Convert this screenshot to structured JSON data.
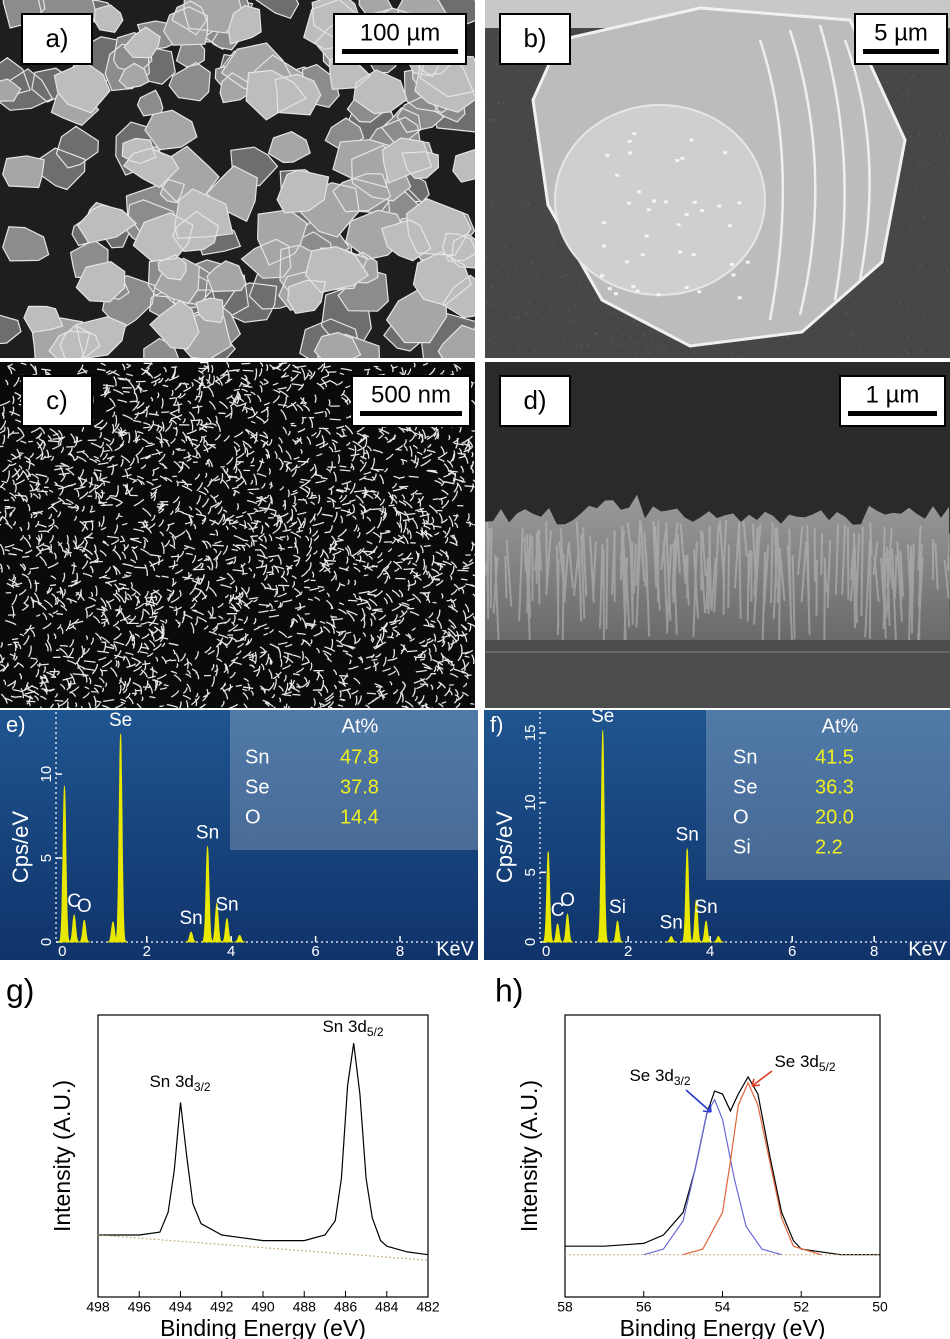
{
  "images": [
    {
      "label": "a)",
      "scale_bar": "100 µm"
    },
    {
      "label": "b)",
      "scale_bar": "5 µm"
    },
    {
      "label": "c)",
      "scale_bar": "500 nm"
    },
    {
      "label": "d)",
      "scale_bar": "1 µm"
    }
  ],
  "chart_data": [
    {
      "type": "eds",
      "label": "e)",
      "x_label": "KeV",
      "y_label": "Cps/eV",
      "xlim": [
        -0.15,
        9.8
      ],
      "ylim": [
        0,
        13.7
      ],
      "xticks": [
        0,
        2,
        4,
        6,
        8
      ],
      "yticks": [
        0,
        5,
        10
      ],
      "color": "#e8e800",
      "peaks": {
        "labels": [
          null,
          "C",
          "O",
          null,
          "Se",
          "Sn",
          "Sn",
          null,
          "Sn",
          null
        ],
        "x": [
          0.05,
          0.28,
          0.52,
          1.2,
          1.38,
          3.05,
          3.44,
          3.66,
          3.9,
          4.2
        ],
        "values": [
          9.3,
          1.6,
          1.3,
          1.2,
          12.4,
          0.6,
          5.7,
          2.3,
          1.4,
          0.4
        ]
      },
      "table": {
        "header": "At%",
        "rows": [
          [
            "Sn",
            "47.8"
          ],
          [
            "Se",
            "37.8"
          ],
          [
            "O",
            "14.4"
          ]
        ]
      }
    },
    {
      "type": "eds",
      "label": "f)",
      "x_label": "KeV",
      "y_label": "Cps/eV",
      "xlim": [
        -0.15,
        9.8
      ],
      "ylim": [
        0,
        16.5
      ],
      "xticks": [
        0,
        2,
        4,
        6,
        8
      ],
      "yticks": [
        0,
        5,
        10,
        15
      ],
      "color": "#e8e800",
      "peaks": {
        "labels": [
          null,
          "C",
          "O",
          "Se",
          "Si",
          "Sn",
          "Sn",
          null,
          "Sn",
          null
        ],
        "x": [
          0.05,
          0.28,
          0.52,
          1.38,
          1.74,
          3.05,
          3.44,
          3.66,
          3.9,
          4.2
        ],
        "values": [
          6.5,
          1.3,
          2.0,
          15.2,
          1.5,
          0.4,
          6.7,
          3.0,
          1.5,
          0.4
        ]
      },
      "table": {
        "header": "At%",
        "rows": [
          [
            "Sn",
            "41.5"
          ],
          [
            "Se",
            "36.3"
          ],
          [
            "O",
            "20.0"
          ],
          [
            "Si",
            "2.2"
          ]
        ]
      }
    },
    {
      "type": "line",
      "label": "g)",
      "x_label": "Binding Energy (eV)",
      "y_label": "Intensity (A.U.)",
      "xlim": [
        498,
        482
      ],
      "ylim": [
        0,
        1
      ],
      "xticks": [
        498,
        496,
        494,
        492,
        490,
        488,
        486,
        484,
        482
      ],
      "series": [
        {
          "color": "#000000",
          "x": [
            498,
            497,
            496,
            495,
            494.6,
            494.3,
            494,
            493.7,
            493.4,
            493,
            492,
            491,
            490,
            489,
            488,
            487,
            486.5,
            486.2,
            485.9,
            485.6,
            485.3,
            485,
            484.7,
            484.3,
            484,
            483,
            482
          ],
          "values": [
            0.22,
            0.22,
            0.22,
            0.23,
            0.3,
            0.45,
            0.69,
            0.5,
            0.33,
            0.26,
            0.22,
            0.21,
            0.2,
            0.2,
            0.2,
            0.22,
            0.27,
            0.42,
            0.75,
            0.9,
            0.72,
            0.42,
            0.28,
            0.2,
            0.18,
            0.16,
            0.15
          ]
        },
        {
          "color": "#b8a060",
          "style": "dotted",
          "x": [
            498,
            482
          ],
          "values": [
            0.22,
            0.13
          ]
        }
      ],
      "annotations": [
        {
          "text": "Sn 3d",
          "sub": "3/2"
        },
        {
          "text": "Sn 3d",
          "sub": "5/2"
        }
      ]
    },
    {
      "type": "line",
      "label": "h)",
      "x_label": "Binding Energy (eV)",
      "y_label": "Intensity (A.U.)",
      "xlim": [
        58,
        50
      ],
      "ylim": [
        0,
        1
      ],
      "xticks": [
        58,
        56,
        54,
        52,
        50
      ],
      "series": [
        {
          "color": "#000000",
          "x": [
            58,
            57,
            56,
            55.5,
            55,
            54.7,
            54.4,
            54.2,
            54,
            53.8,
            53.6,
            53.35,
            53.1,
            52.8,
            52.5,
            52.2,
            52,
            51,
            50
          ],
          "values": [
            0.18,
            0.18,
            0.19,
            0.22,
            0.3,
            0.45,
            0.65,
            0.73,
            0.72,
            0.66,
            0.72,
            0.78,
            0.72,
            0.5,
            0.3,
            0.2,
            0.17,
            0.15,
            0.15
          ]
        },
        {
          "color": "#6a6ad8",
          "x": [
            56,
            55.5,
            55,
            54.7,
            54.4,
            54.2,
            54,
            53.7,
            53.4,
            53,
            52.5
          ],
          "values": [
            0.15,
            0.17,
            0.27,
            0.45,
            0.65,
            0.7,
            0.63,
            0.42,
            0.25,
            0.17,
            0.15
          ]
        },
        {
          "color": "#e0643c",
          "x": [
            55,
            54.5,
            54,
            53.8,
            53.6,
            53.35,
            53.1,
            52.8,
            52.5,
            52.2,
            51.5
          ],
          "values": [
            0.15,
            0.17,
            0.3,
            0.48,
            0.68,
            0.76,
            0.68,
            0.48,
            0.28,
            0.18,
            0.15
          ]
        },
        {
          "color": "#c0a070",
          "style": "dotted",
          "x": [
            58,
            50
          ],
          "values": [
            0.15,
            0.15
          ]
        }
      ],
      "annotations": [
        {
          "text": "Se 3d",
          "sub": "3/2"
        },
        {
          "text": "Se 3d",
          "sub": "5/2"
        }
      ]
    }
  ]
}
